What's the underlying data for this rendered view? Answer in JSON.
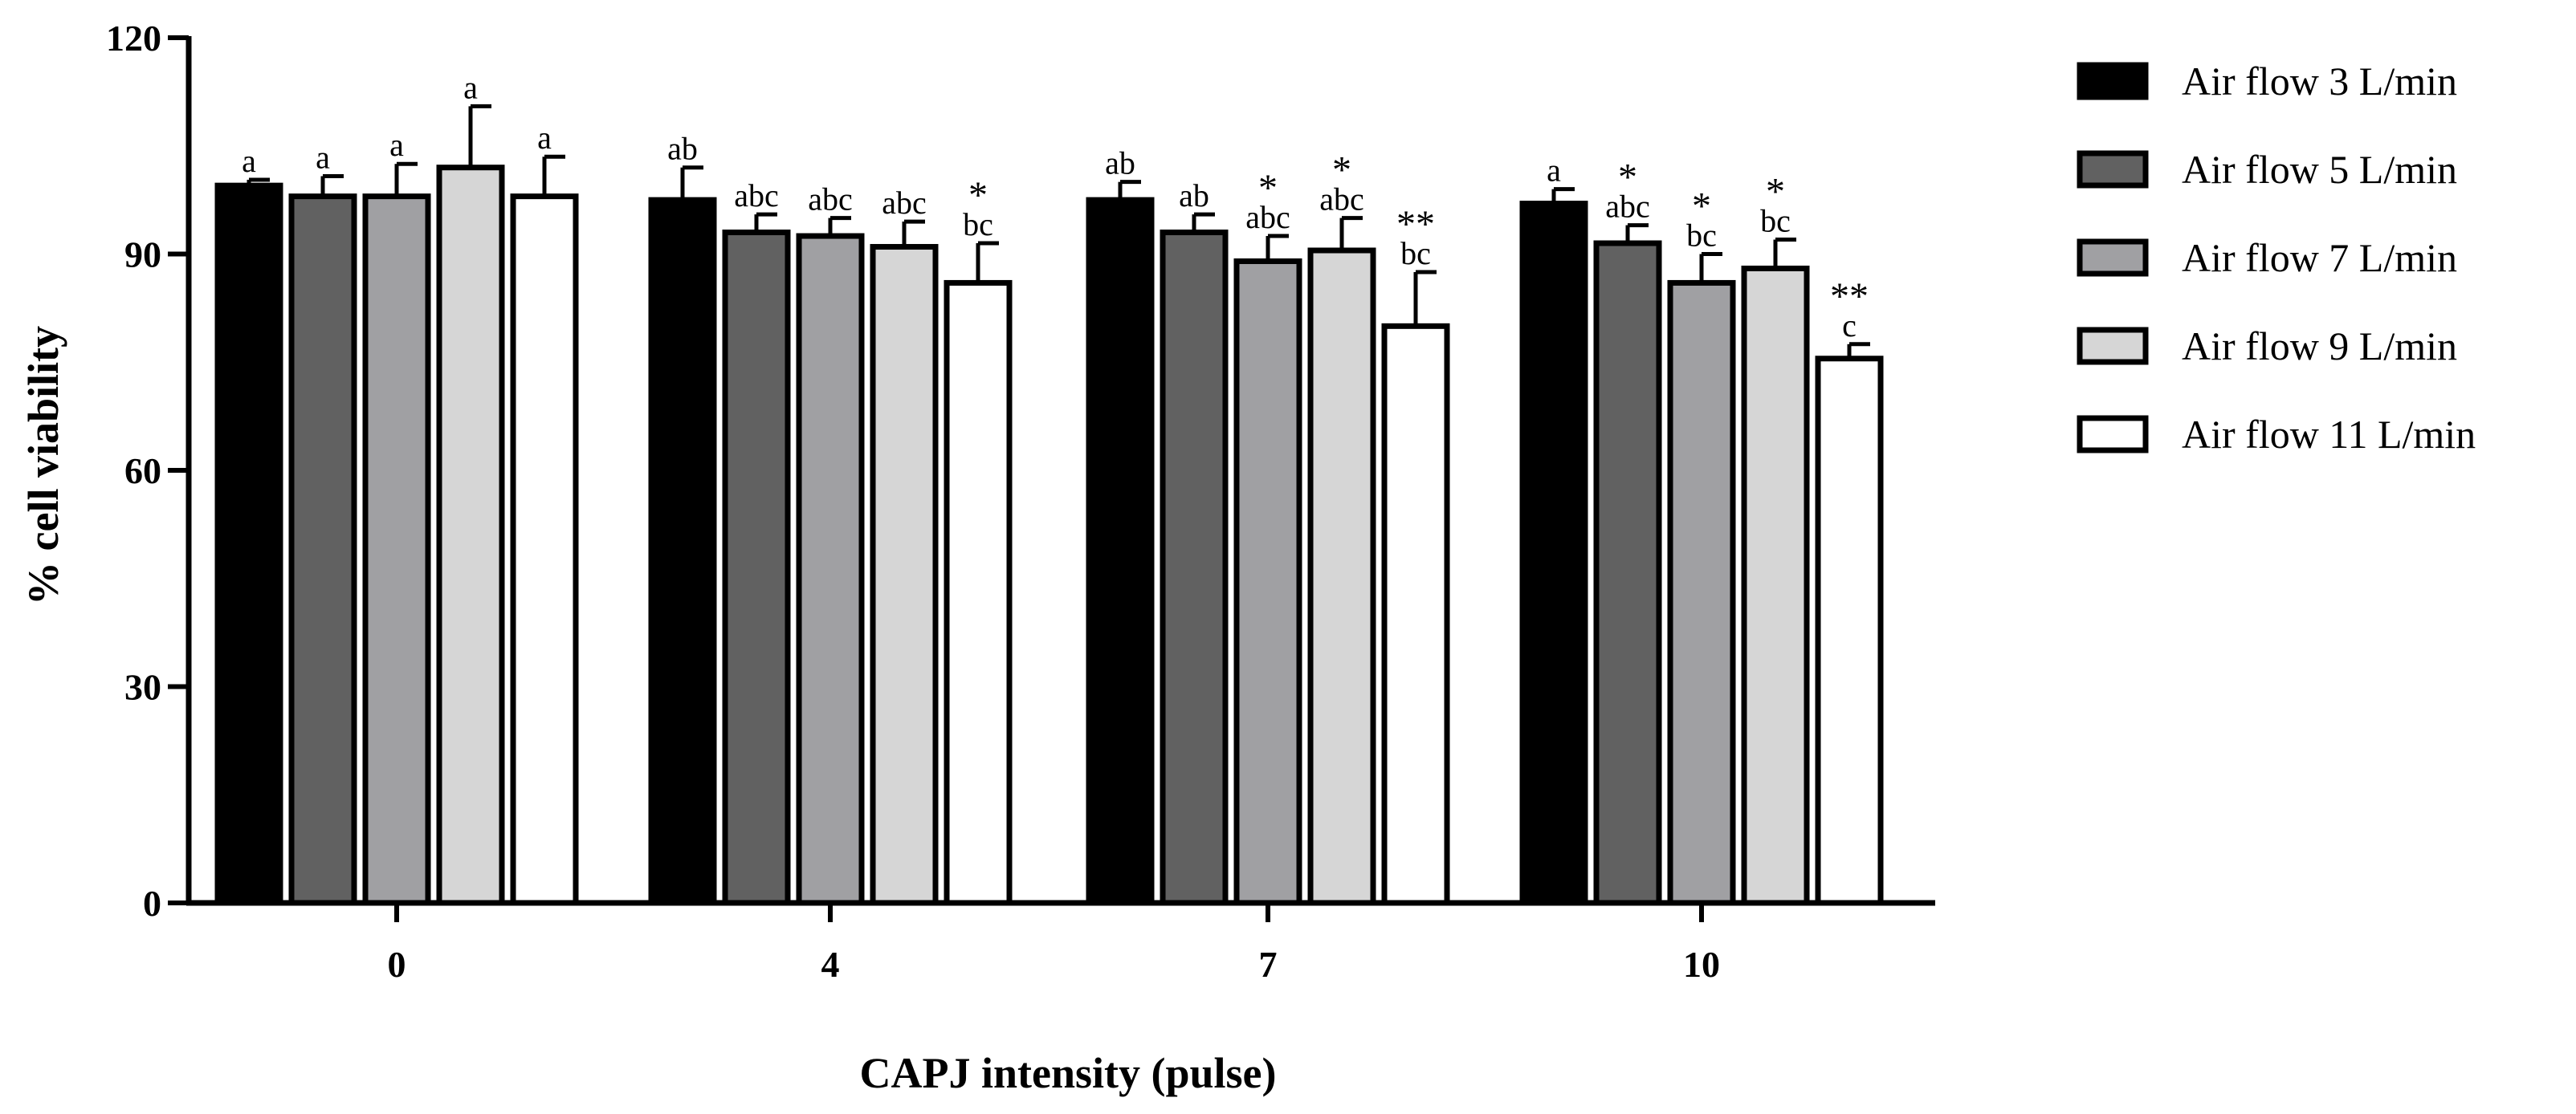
{
  "chart_data": {
    "type": "bar",
    "title": "",
    "xlabel": "CAPJ intensity (pulse)",
    "ylabel": "% cell viability",
    "ylim": [
      0,
      120
    ],
    "yticks": [
      0,
      30,
      60,
      90,
      120
    ],
    "categories": [
      "0",
      "4",
      "7",
      "10"
    ],
    "legend_position": "top-right",
    "series": [
      {
        "name": "Air flow 3 L/min",
        "color": "#000000",
        "values": [
          99.5,
          97.5,
          97.5,
          97.0
        ],
        "errors": [
          0.8,
          4.5,
          2.5,
          2.0
        ],
        "letters": [
          "a",
          "ab",
          "ab",
          "a"
        ],
        "stars": [
          "",
          "",
          "",
          ""
        ]
      },
      {
        "name": "Air flow 5 L/min",
        "color": "#616161",
        "values": [
          98.0,
          93.0,
          93.0,
          91.5
        ],
        "errors": [
          2.8,
          2.5,
          2.5,
          2.5
        ],
        "letters": [
          "a",
          "abc",
          "ab",
          "abc"
        ],
        "stars": [
          "",
          "",
          "",
          "*"
        ]
      },
      {
        "name": "Air flow 7 L/min",
        "color": "#a0a0a3",
        "values": [
          98.0,
          92.5,
          89.0,
          86.0
        ],
        "errors": [
          4.5,
          2.5,
          3.5,
          4.0
        ],
        "letters": [
          "a",
          "abc",
          "abc",
          "bc"
        ],
        "stars": [
          "",
          "",
          "*",
          "*"
        ]
      },
      {
        "name": "Air flow 9 L/min",
        "color": "#d6d6d6",
        "values": [
          102.0,
          91.0,
          90.5,
          88.0
        ],
        "errors": [
          8.5,
          3.5,
          4.5,
          4.0
        ],
        "letters": [
          "a",
          "abc",
          "abc",
          "bc"
        ],
        "stars": [
          "",
          "",
          "*",
          "*"
        ]
      },
      {
        "name": "Air flow 11 L/min",
        "color": "#ffffff",
        "values": [
          98.0,
          86.0,
          80.0,
          75.5
        ],
        "errors": [
          5.5,
          5.5,
          7.5,
          2.0
        ],
        "letters": [
          "a",
          "bc",
          "bc",
          "c"
        ],
        "stars": [
          "",
          "*",
          "**",
          "**"
        ]
      }
    ]
  }
}
